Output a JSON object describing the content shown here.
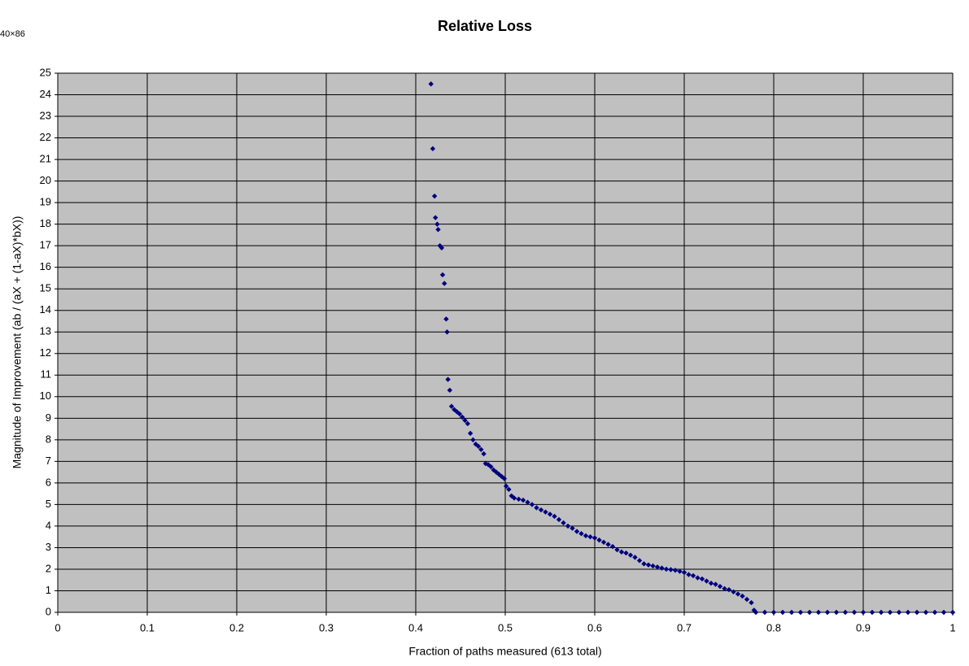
{
  "chart_data": {
    "type": "scatter",
    "title": "Relative Loss",
    "corner_label": "40×86",
    "x_label": "Fraction of paths measured (613 total)",
    "y_label": "Magnitude of Improvement (ab / (aX + (1-aX)*bX))",
    "xlim": [
      0,
      1
    ],
    "ylim": [
      0,
      25
    ],
    "xticks": [
      0,
      0.1,
      0.2,
      0.3,
      0.4,
      0.5,
      0.6,
      0.7,
      0.8,
      0.9,
      1
    ],
    "yticks": [
      0,
      1,
      2,
      3,
      4,
      5,
      6,
      7,
      8,
      9,
      10,
      11,
      12,
      13,
      14,
      15,
      16,
      17,
      18,
      19,
      20,
      21,
      22,
      23,
      24,
      25
    ],
    "grid": true,
    "background": "#c0c0c0",
    "series": [
      {
        "color": "#000080",
        "x": [
          0.417,
          0.419,
          0.421,
          0.422,
          0.424,
          0.425,
          0.427,
          0.429,
          0.43,
          0.432,
          0.434,
          0.435,
          0.436,
          0.438,
          0.44,
          0.443,
          0.446,
          0.449,
          0.452,
          0.455,
          0.458,
          0.461,
          0.464,
          0.467,
          0.47,
          0.473,
          0.476,
          0.478,
          0.481,
          0.484,
          0.487,
          0.49,
          0.493,
          0.496,
          0.499,
          0.501,
          0.504,
          0.507,
          0.51,
          0.515,
          0.52,
          0.525,
          0.53,
          0.535,
          0.54,
          0.545,
          0.55,
          0.555,
          0.56,
          0.565,
          0.57,
          0.575,
          0.58,
          0.585,
          0.59,
          0.595,
          0.6,
          0.605,
          0.61,
          0.615,
          0.62,
          0.625,
          0.63,
          0.635,
          0.64,
          0.645,
          0.65,
          0.655,
          0.66,
          0.665,
          0.67,
          0.675,
          0.68,
          0.685,
          0.69,
          0.695,
          0.7,
          0.705,
          0.71,
          0.715,
          0.72,
          0.725,
          0.73,
          0.735,
          0.74,
          0.745,
          0.75,
          0.755,
          0.76,
          0.765,
          0.77,
          0.775,
          0.778,
          0.78,
          0.79,
          0.8,
          0.81,
          0.82,
          0.83,
          0.84,
          0.85,
          0.86,
          0.87,
          0.88,
          0.89,
          0.9,
          0.91,
          0.92,
          0.93,
          0.94,
          0.95,
          0.96,
          0.97,
          0.98,
          0.99,
          1
        ],
        "values": [
          24.5,
          21.5,
          19.3,
          18.3,
          18.0,
          17.75,
          17.0,
          16.9,
          15.65,
          15.25,
          13.6,
          13.0,
          10.8,
          10.3,
          9.55,
          9.4,
          9.3,
          9.2,
          9.05,
          8.9,
          8.75,
          8.3,
          8.0,
          7.8,
          7.7,
          7.55,
          7.35,
          6.9,
          6.85,
          6.75,
          6.6,
          6.5,
          6.4,
          6.3,
          6.2,
          5.85,
          5.7,
          5.4,
          5.3,
          5.25,
          5.2,
          5.1,
          5.0,
          4.85,
          4.75,
          4.65,
          4.55,
          4.45,
          4.3,
          4.15,
          4.0,
          3.9,
          3.75,
          3.65,
          3.55,
          3.5,
          3.45,
          3.35,
          3.25,
          3.15,
          3.05,
          2.9,
          2.8,
          2.75,
          2.65,
          2.55,
          2.4,
          2.25,
          2.2,
          2.15,
          2.1,
          2.05,
          2.0,
          1.98,
          1.95,
          1.9,
          1.85,
          1.75,
          1.7,
          1.6,
          1.55,
          1.45,
          1.35,
          1.3,
          1.2,
          1.1,
          1.05,
          0.95,
          0.85,
          0.75,
          0.6,
          0.45,
          0.1,
          0,
          0,
          0,
          0,
          0,
          0,
          0,
          0,
          0,
          0,
          0,
          0,
          0,
          0,
          0,
          0,
          0,
          0,
          0,
          0,
          0,
          0,
          0
        ]
      }
    ]
  }
}
